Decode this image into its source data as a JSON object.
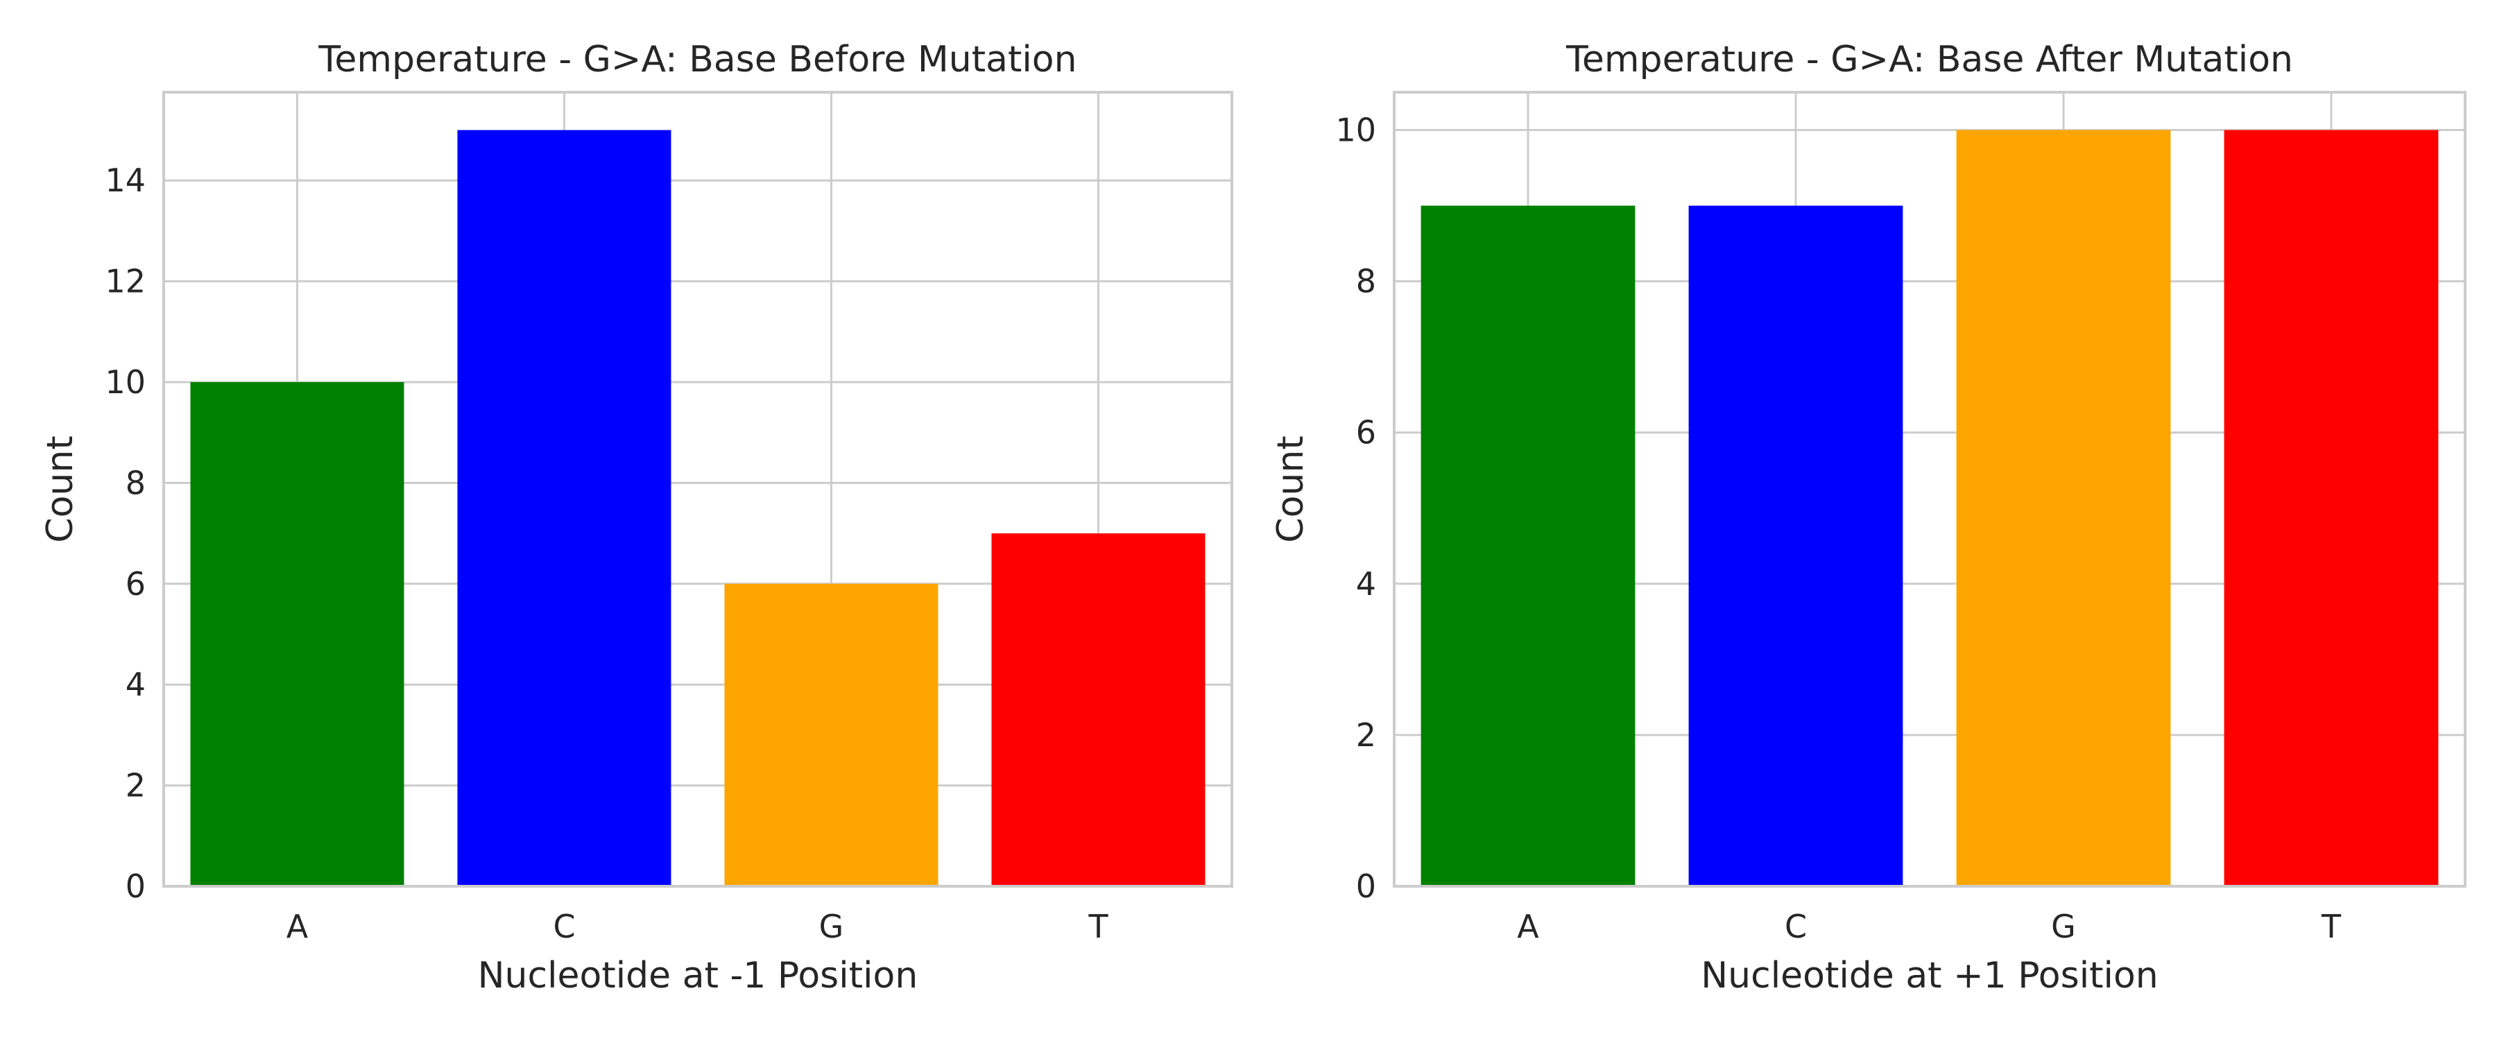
{
  "chart_data": [
    {
      "type": "bar",
      "title": "Temperature - G>A: Base Before Mutation",
      "xlabel": "Nucleotide at -1 Position",
      "ylabel": "Count",
      "categories": [
        "A",
        "C",
        "G",
        "T"
      ],
      "values": [
        10,
        15,
        6,
        7
      ],
      "colors": [
        "#008000",
        "#0000ff",
        "#ffa500",
        "#ff0000"
      ],
      "ylim": [
        0,
        15.75
      ],
      "yticks": [
        0,
        2,
        4,
        6,
        8,
        10,
        12,
        14
      ],
      "grid": true,
      "legend": "none"
    },
    {
      "type": "bar",
      "title": "Temperature - G>A: Base After Mutation",
      "xlabel": "Nucleotide at +1 Position",
      "ylabel": "Count",
      "categories": [
        "A",
        "C",
        "G",
        "T"
      ],
      "values": [
        9,
        9,
        10,
        10
      ],
      "colors": [
        "#008000",
        "#0000ff",
        "#ffa500",
        "#ff0000"
      ],
      "ylim": [
        0,
        10.5
      ],
      "yticks": [
        0,
        2,
        4,
        6,
        8,
        10
      ],
      "grid": true,
      "legend": "none"
    }
  ]
}
